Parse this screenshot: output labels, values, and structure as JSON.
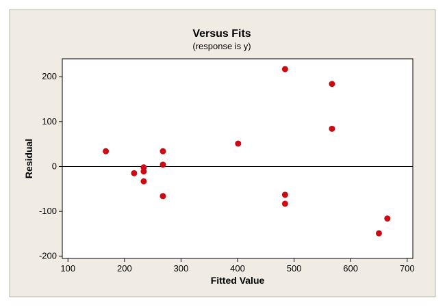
{
  "chart_data": {
    "type": "scatter",
    "title": "Versus Fits",
    "subtitle": "(response is y)",
    "xlabel": "Fitted Value",
    "ylabel": "Residual",
    "xlim": [
      90,
      710
    ],
    "ylim": [
      -205,
      240
    ],
    "xticks": [
      100,
      200,
      300,
      400,
      500,
      600,
      700
    ],
    "yticks": [
      -200,
      -100,
      0,
      100,
      200
    ],
    "reference_line_y": 0,
    "grid": false,
    "points": [
      {
        "x": 167,
        "y": 34
      },
      {
        "x": 217,
        "y": -15
      },
      {
        "x": 234,
        "y": -2
      },
      {
        "x": 234,
        "y": -11
      },
      {
        "x": 234,
        "y": -33
      },
      {
        "x": 268,
        "y": 34
      },
      {
        "x": 268,
        "y": 4
      },
      {
        "x": 268,
        "y": -66
      },
      {
        "x": 401,
        "y": 51
      },
      {
        "x": 484,
        "y": 217
      },
      {
        "x": 484,
        "y": -63
      },
      {
        "x": 484,
        "y": -83
      },
      {
        "x": 567,
        "y": 184
      },
      {
        "x": 567,
        "y": 84
      },
      {
        "x": 650,
        "y": -149
      },
      {
        "x": 665,
        "y": -116
      }
    ],
    "colors": {
      "background": "#f0ece4",
      "plot_area": "#ffffff",
      "point": "#cc0a14",
      "axis": "#000000"
    }
  }
}
